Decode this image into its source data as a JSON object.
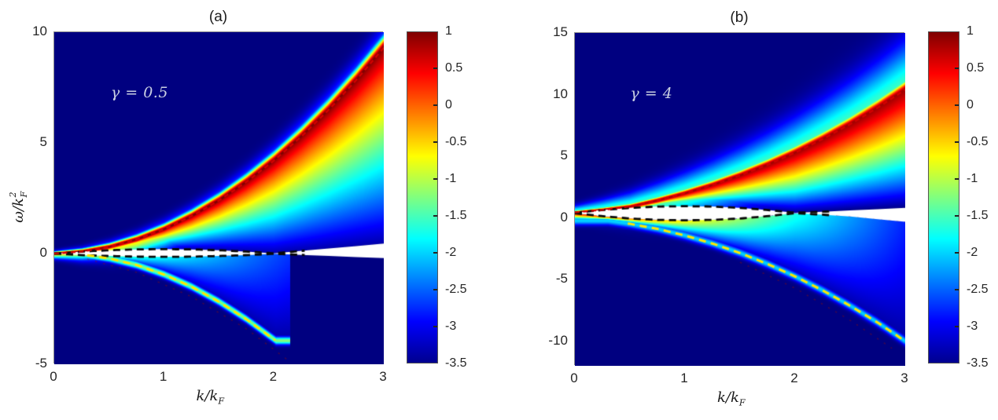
{
  "figure": {
    "background": "#ffffff",
    "description": "Dynamical structure factor heatmaps (log scale) versus momentum and frequency for two interaction strengths"
  },
  "colors": {
    "background_min": "#00008f",
    "annotation_text": "#c9cfe2",
    "tick_text": "#262626",
    "title_text": "#1a1a1a",
    "red_dashed": "#d40000",
    "yellow_dashed": "#ffe600",
    "black_dashed": "#0a0a0a",
    "saturated_region": "#ffffff",
    "faint_arc": "#991100"
  },
  "colorbar": {
    "min": -3.5,
    "max": 1,
    "tick_labels": [
      "1",
      "0.5",
      "0",
      "-0.5",
      "-1",
      "-1.5",
      "-2",
      "-2.5",
      "-3",
      "-3.5"
    ],
    "gradient": [
      [
        "0%",
        "#7f0000"
      ],
      [
        "12.5%",
        "#ff0000"
      ],
      [
        "37.5%",
        "#ffff00"
      ],
      [
        "62.5%",
        "#00ffff"
      ],
      [
        "87.5%",
        "#0000ff"
      ],
      [
        "100%",
        "#00008f"
      ]
    ]
  },
  "chart_data": [
    {
      "type": "heatmap",
      "title": "(a)",
      "annotation": "γ = 0.5",
      "xlabel": "k/k_F",
      "ylabel": "ω/k_F²",
      "xlabel_parts": {
        "num": "k",
        "slash": "/",
        "den": "k",
        "den_sub": "F"
      },
      "ylabel_parts": {
        "num": "ω",
        "slash": "/",
        "den": "k",
        "den_sup": "2",
        "den_sub": "F"
      },
      "x_range": [
        0,
        3
      ],
      "y_range": [
        -5,
        10
      ],
      "x_ticks": [
        "0",
        "1",
        "2",
        "3"
      ],
      "x_tick_values": [
        0,
        1,
        2,
        3
      ],
      "y_ticks": [
        "10",
        "5",
        "0",
        "-5"
      ],
      "y_tick_values": [
        10,
        5,
        0,
        -5
      ],
      "color_range": [
        -3.5,
        1
      ],
      "colormap": "jet",
      "series": [
        {
          "name": "bogoliubov-dispersion",
          "style": "dashed-red",
          "points": [
            [
              0,
              0
            ],
            [
              0.25,
              0.09
            ],
            [
              0.5,
              0.3
            ],
            [
              0.75,
              0.64
            ],
            [
              1,
              1.1
            ],
            [
              1.25,
              1.69
            ],
            [
              1.5,
              2.4
            ],
            [
              1.75,
              3.24
            ],
            [
              2,
              4.2
            ],
            [
              2.25,
              5.29
            ],
            [
              2.5,
              6.5
            ],
            [
              2.75,
              7.84
            ],
            [
              3,
              9.3
            ]
          ]
        },
        {
          "name": "negative-branch",
          "style": "dashed-yellow",
          "draw_k_min": 0.3,
          "points": [
            [
              0.2,
              -0.03
            ],
            [
              0.35,
              -0.11
            ],
            [
              0.5,
              -0.22
            ],
            [
              0.75,
              -0.52
            ],
            [
              1,
              -0.95
            ],
            [
              1.25,
              -1.5
            ],
            [
              1.5,
              -2.18
            ],
            [
              1.75,
              -2.97
            ],
            [
              2.02,
              -3.95
            ]
          ]
        },
        {
          "name": "continuum-upper-bound",
          "style": "dashed-black",
          "draw_k_max": 2.3,
          "points": [
            [
              0,
              0
            ],
            [
              0.25,
              0.09
            ],
            [
              0.5,
              0.15
            ],
            [
              0.75,
              0.19
            ],
            [
              1,
              0.2
            ],
            [
              1.25,
              0.19
            ],
            [
              1.5,
              0.15
            ],
            [
              1.75,
              0.09
            ],
            [
              2,
              0.01
            ],
            [
              2.25,
              0.12
            ],
            [
              2.5,
              0.23
            ],
            [
              2.75,
              0.34
            ],
            [
              3,
              0.45
            ]
          ]
        },
        {
          "name": "continuum-lower-bound",
          "style": "dashed-black",
          "draw_k_max": 2.3,
          "points": [
            [
              0,
              0
            ],
            [
              0.25,
              -0.07
            ],
            [
              0.5,
              -0.11
            ],
            [
              0.75,
              -0.14
            ],
            [
              1,
              -0.15
            ],
            [
              1.25,
              -0.14
            ],
            [
              1.5,
              -0.11
            ],
            [
              1.75,
              -0.07
            ],
            [
              2,
              -0.01
            ],
            [
              2.25,
              -0.06
            ],
            [
              2.5,
              -0.11
            ],
            [
              2.75,
              -0.16
            ],
            [
              3,
              -0.2
            ]
          ]
        },
        {
          "name": "umklapp-shadow",
          "style": "faint-red",
          "points": [
            [
              0.3,
              -0.25
            ],
            [
              0.75,
              -0.85
            ],
            [
              1.25,
              -1.95
            ],
            [
              1.75,
              -3.4
            ],
            [
              2.15,
              -4.9
            ]
          ]
        }
      ],
      "glow": {
        "peak": 1.0,
        "sig_above_narrow": [
          0.06,
          0.1
        ],
        "amp_above_broad": 1.2,
        "sig_above_broad": [
          0.1,
          0.2
        ],
        "sig_below_narrow": [
          0.07,
          0.1
        ],
        "amp_below_broad": 3.0,
        "sig_below_broad": [
          0.15,
          0.4
        ],
        "ramp_drop": 4.3,
        "ramp_pow": 0.85,
        "band_top": [
          -1.0,
          -0.8
        ],
        "band_pow": 1.2,
        "band_k_max": 2.15,
        "yellow_amp": 2.3,
        "yellow_sigma": 0.12
      }
    },
    {
      "type": "heatmap",
      "title": "(b)",
      "annotation": "γ = 4",
      "xlabel": "k/k_F",
      "ylabel": "",
      "xlabel_parts": {
        "num": "k",
        "slash": "/",
        "den": "k",
        "den_sub": "F"
      },
      "x_range": [
        0,
        3
      ],
      "y_range": [
        -12,
        15
      ],
      "x_ticks": [
        "0",
        "1",
        "2",
        "3"
      ],
      "x_tick_values": [
        0,
        1,
        2,
        3
      ],
      "y_ticks": [
        "15",
        "10",
        "5",
        "0",
        "-5",
        "-10"
      ],
      "y_tick_values": [
        15,
        10,
        5,
        0,
        -5,
        -10
      ],
      "color_range": [
        -3.5,
        1
      ],
      "colormap": "jet",
      "series": [
        {
          "name": "bogoliubov-dispersion",
          "style": "dashed-red",
          "points": [
            [
              0,
              0.45
            ],
            [
              0.25,
              0.65
            ],
            [
              0.5,
              0.92
            ],
            [
              0.75,
              1.42
            ],
            [
              1,
              2.0
            ],
            [
              1.25,
              2.67
            ],
            [
              1.5,
              3.44
            ],
            [
              1.75,
              4.31
            ],
            [
              2,
              5.29
            ],
            [
              2.25,
              6.39
            ],
            [
              2.5,
              7.6
            ],
            [
              2.75,
              8.94
            ],
            [
              3,
              10.4
            ]
          ]
        },
        {
          "name": "negative-branch",
          "style": "dashed-yellow",
          "draw_k_min": 0.48,
          "points": [
            [
              0.3,
              -0.23
            ],
            [
              0.5,
              -0.48
            ],
            [
              0.75,
              -0.89
            ],
            [
              1,
              -1.43
            ],
            [
              1.25,
              -2.08
            ],
            [
              1.5,
              -2.85
            ],
            [
              1.75,
              -3.74
            ],
            [
              2,
              -4.75
            ],
            [
              2.25,
              -5.88
            ],
            [
              2.5,
              -7.13
            ],
            [
              2.75,
              -8.49
            ],
            [
              3,
              -10.0
            ]
          ]
        },
        {
          "name": "continuum-upper-bound",
          "style": "dashed-black",
          "draw_k_max": 2.32,
          "points": [
            [
              0,
              0.42
            ],
            [
              0.25,
              0.64
            ],
            [
              0.5,
              0.81
            ],
            [
              0.75,
              0.92
            ],
            [
              1,
              0.95
            ],
            [
              1.25,
              0.92
            ],
            [
              1.5,
              0.81
            ],
            [
              1.75,
              0.64
            ],
            [
              2,
              0.42
            ],
            [
              2.25,
              0.5
            ],
            [
              2.5,
              0.61
            ],
            [
              2.75,
              0.71
            ],
            [
              3,
              0.82
            ]
          ]
        },
        {
          "name": "continuum-lower-bound",
          "style": "dashed-black",
          "draw_k_max": 2.32,
          "points": [
            [
              0,
              0.38
            ],
            [
              0.25,
              0.14
            ],
            [
              0.5,
              -0.05
            ],
            [
              0.75,
              -0.16
            ],
            [
              1,
              -0.2
            ],
            [
              1.25,
              -0.16
            ],
            [
              1.5,
              -0.05
            ],
            [
              1.75,
              0.14
            ],
            [
              2,
              0.38
            ],
            [
              2.25,
              0.26
            ],
            [
              2.5,
              0.12
            ],
            [
              2.75,
              -0.1
            ],
            [
              3,
              -0.32
            ]
          ]
        },
        {
          "name": "umklapp-shadow",
          "style": "faint-red",
          "points": [
            [
              1.5,
              -3.6
            ],
            [
              2,
              -5.7
            ],
            [
              2.5,
              -8.3
            ],
            [
              2.9,
              -10.7
            ]
          ]
        }
      ],
      "glow": {
        "peak": 0.85,
        "sig_above_narrow": [
          0.1,
          0.15
        ],
        "amp_above_broad": 2.0,
        "sig_above_broad": [
          0.35,
          0.75
        ],
        "sig_below_narrow": [
          0.12,
          0.18
        ],
        "amp_below_broad": 2.2,
        "sig_below_broad": [
          0.4,
          0.8
        ],
        "ramp_drop": 4.3,
        "ramp_pow": 1.1,
        "band_top": [
          0.5,
          -1.1
        ],
        "band_pow": 1.3,
        "band_k_max": 3.1,
        "yellow_amp": 1.5,
        "yellow_sigma": 0.25
      }
    }
  ]
}
